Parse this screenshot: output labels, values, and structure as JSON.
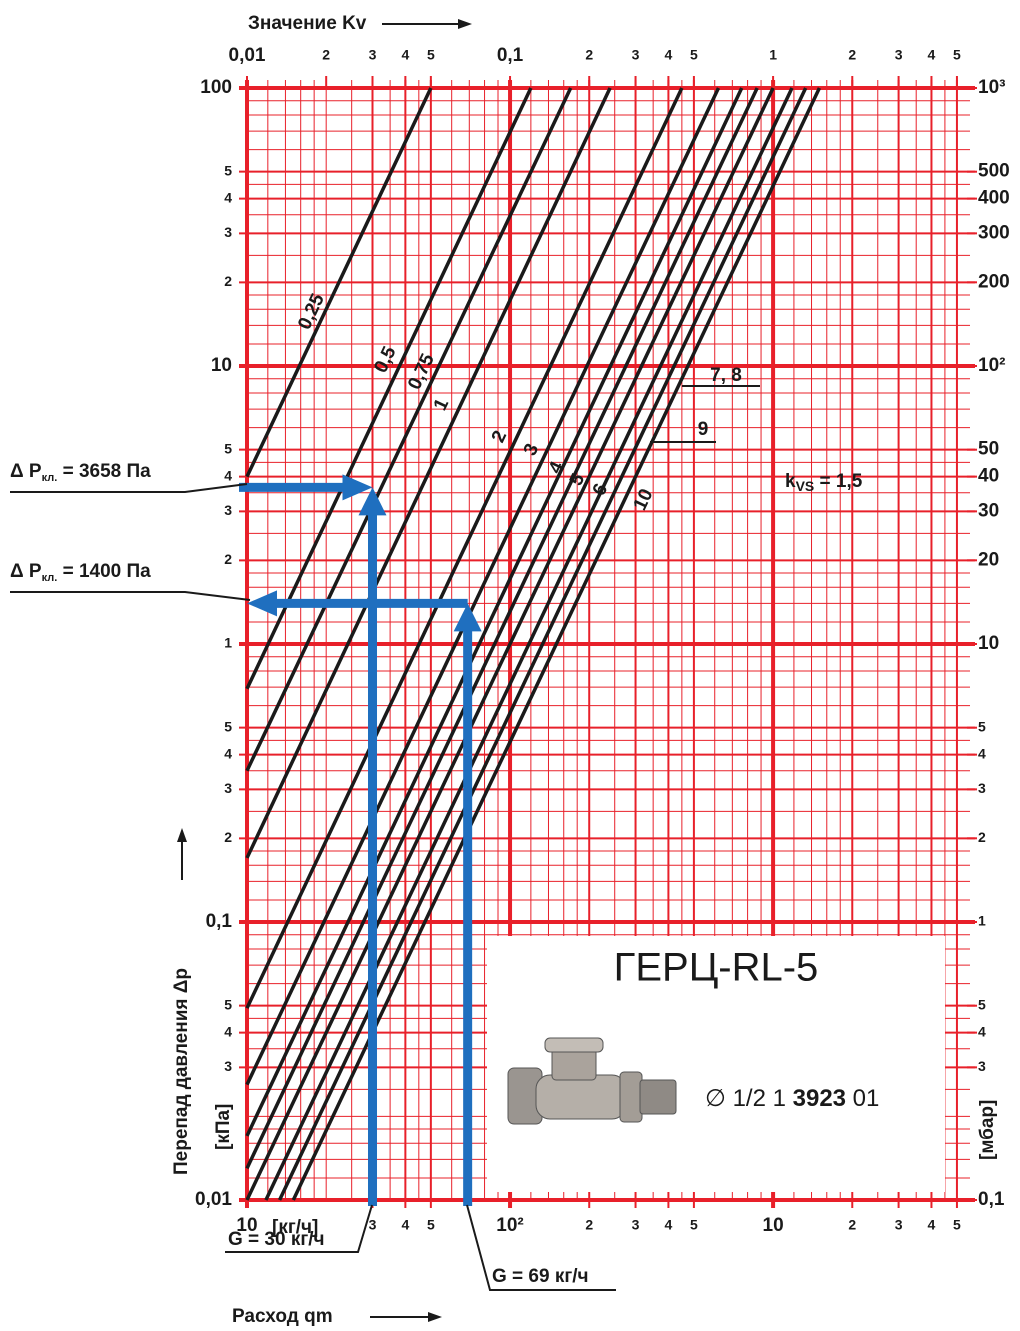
{
  "chart_data": {
    "type": "line",
    "title": "Значение Kv",
    "x_axis_title": "Расход qm",
    "y_axis_title": "Перепад давления Δp",
    "x_unit": "[кг/ч]",
    "y_unit": "[кПа]",
    "y2_unit": "[мбар]",
    "log_x": true,
    "log_y": true,
    "grid": true,
    "grid_color": "#e8202a",
    "line_color": "#1a1a1a",
    "arrow_color": "#1f6fbf",
    "xlim": [
      10,
      5460
    ],
    "xticks": [
      10,
      {
        "value": 30,
        "label": "3"
      },
      {
        "value": 40,
        "label": "4"
      },
      {
        "value": 50,
        "label": "5"
      },
      {
        "value": 100,
        "label": "10²"
      },
      {
        "value": 200,
        "label": "2"
      },
      {
        "value": 300,
        "label": "3"
      },
      {
        "value": 400,
        "label": "4"
      },
      {
        "value": 500,
        "label": "5"
      },
      {
        "value": 1000,
        "label": "10"
      },
      {
        "value": 2000,
        "label": "2"
      },
      {
        "value": 3000,
        "label": "3"
      },
      {
        "value": 4000,
        "label": "4"
      },
      {
        "value": 5000,
        "label": "5"
      }
    ],
    "xminor": [
      12,
      14,
      16,
      18,
      20,
      25,
      35,
      45,
      60,
      70,
      80,
      90,
      120,
      140,
      160,
      180,
      250,
      350,
      450,
      600,
      700,
      800,
      900,
      1200,
      1400,
      1600,
      1800,
      2500,
      3500,
      4500
    ],
    "x2lim": [
      0.01,
      5.46
    ],
    "x2ticks": [
      {
        "value": 0.01,
        "label": "0,01"
      },
      {
        "value": 0.02,
        "label": "2"
      },
      {
        "value": 0.03,
        "label": "3"
      },
      {
        "value": 0.04,
        "label": "4"
      },
      {
        "value": 0.05,
        "label": "5"
      },
      {
        "value": 0.1,
        "label": "0,1"
      },
      {
        "value": 0.2,
        "label": "2"
      },
      {
        "value": 0.3,
        "label": "3"
      },
      {
        "value": 0.4,
        "label": "4"
      },
      {
        "value": 0.5,
        "label": "5"
      },
      1,
      2,
      3,
      4,
      5
    ],
    "ylim": [
      0.01,
      100
    ],
    "yticks": [
      100,
      {
        "value": 50,
        "label": "5"
      },
      {
        "value": 40,
        "label": "4"
      },
      {
        "value": 30,
        "label": "3"
      },
      {
        "value": 20,
        "label": "2"
      },
      10,
      5,
      4,
      3,
      2,
      1,
      {
        "value": 0.5,
        "label": "5"
      },
      {
        "value": 0.4,
        "label": "4"
      },
      {
        "value": 0.3,
        "label": "3"
      },
      {
        "value": 0.2,
        "label": "2"
      },
      {
        "value": 0.1,
        "label": "0,1"
      },
      {
        "value": 0.05,
        "label": "5"
      },
      {
        "value": 0.04,
        "label": "4"
      },
      {
        "value": 0.03,
        "label": "3"
      },
      {
        "value": 0.01,
        "label": "0,01"
      }
    ],
    "yminor": [
      0.012,
      0.014,
      0.016,
      0.018,
      0.02,
      0.025,
      0.035,
      0.045,
      0.06,
      0.07,
      0.08,
      0.09,
      0.12,
      0.14,
      0.16,
      0.18,
      0.25,
      0.35,
      0.45,
      0.6,
      0.7,
      0.8,
      0.9,
      1.2,
      1.4,
      1.6,
      1.8,
      2.5,
      3.5,
      4.5,
      6,
      7,
      8,
      9,
      12,
      14,
      16,
      18,
      25,
      35,
      45,
      60,
      70,
      80,
      90
    ],
    "y2lim": [
      0.1,
      1000
    ],
    "y2ticks": [
      {
        "value": 1000,
        "label": "10³"
      },
      500,
      400,
      300,
      200,
      {
        "value": 100,
        "label": "10²"
      },
      50,
      40,
      30,
      20,
      10,
      5,
      4,
      3,
      2,
      1,
      {
        "value": 0.5,
        "label": "5"
      },
      {
        "value": 0.4,
        "label": "4"
      },
      {
        "value": 0.3,
        "label": "3"
      },
      {
        "value": 0.1,
        "label": "0,1"
      }
    ],
    "series": [
      {
        "name": "0,25",
        "x": [
          10,
          50
        ],
        "values": [
          4,
          100
        ]
      },
      {
        "name": "0,5",
        "x": [
          10,
          120
        ],
        "values": [
          0.69,
          100
        ]
      },
      {
        "name": "0,75",
        "x": [
          10,
          170
        ],
        "values": [
          0.35,
          100
        ]
      },
      {
        "name": "1",
        "x": [
          10,
          240
        ],
        "values": [
          0.17,
          100
        ]
      },
      {
        "name": "2",
        "x": [
          10,
          450
        ],
        "values": [
          0.049,
          100
        ]
      },
      {
        "name": "3",
        "x": [
          10,
          620
        ],
        "values": [
          0.026,
          100
        ]
      },
      {
        "name": "4",
        "x": [
          10,
          760
        ],
        "values": [
          0.017,
          100
        ]
      },
      {
        "name": "5",
        "x": [
          10,
          870
        ],
        "values": [
          0.013,
          100
        ]
      },
      {
        "name": "6",
        "x": [
          10,
          1000
        ],
        "values": [
          0.01,
          100
        ]
      },
      {
        "name": "7, 8",
        "x": [
          11.8,
          1180
        ],
        "values": [
          0.01,
          100
        ]
      },
      {
        "name": "9",
        "x": [
          13.3,
          1330
        ],
        "values": [
          0.01,
          100
        ]
      },
      {
        "name": "10",
        "x": [
          15,
          1500
        ],
        "values": [
          0.01,
          100
        ]
      }
    ],
    "kvs_label": {
      "k": "k",
      "sub": "VS",
      "rest": " = 1,5"
    },
    "readings": [
      {
        "x": 30,
        "y": 3.658,
        "x_label": "G = 30 кг/ч",
        "y_prefix": "Δ P",
        "y_sub": "кл.",
        "y_suffix": " = 3658 Па"
      },
      {
        "x": 69,
        "y": 1.4,
        "x_label": "G = 69 кг/ч",
        "y_prefix": "Δ P",
        "y_sub": "кл.",
        "y_suffix": " = 1400 Па"
      }
    ],
    "product": {
      "name": "ГЕРЦ-RL-5",
      "code_prefix": "∅ 1/2  1 ",
      "code_bold": "3923",
      "code_suffix": " 01"
    }
  }
}
